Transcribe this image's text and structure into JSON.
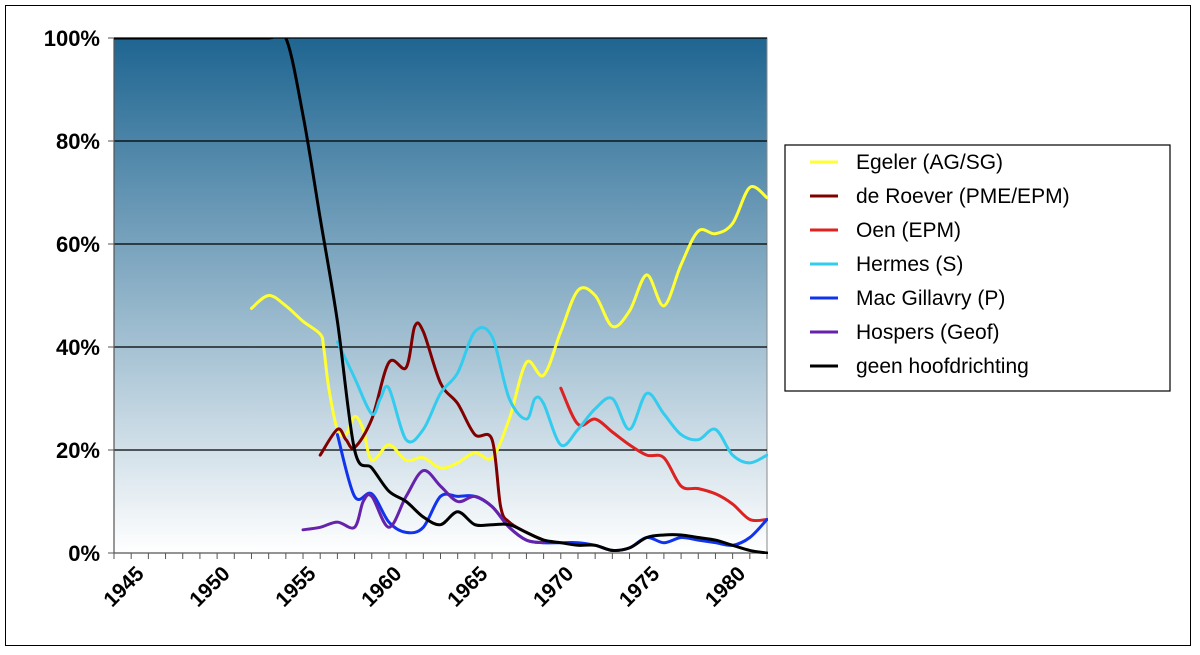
{
  "chart_data": {
    "type": "line",
    "title": "",
    "xlabel": "",
    "ylabel": "",
    "xlim": [
      1944,
      1982
    ],
    "ylim": [
      0,
      100
    ],
    "y_ticks": [
      "0%",
      "20%",
      "40%",
      "60%",
      "80%",
      "100%"
    ],
    "y_tick_values": [
      0,
      20,
      40,
      60,
      80,
      100
    ],
    "x_ticks": [
      "1945",
      "1950",
      "1955",
      "1960",
      "1965",
      "1970",
      "1975",
      "1980"
    ],
    "x_tick_values": [
      1945,
      1950,
      1955,
      1960,
      1965,
      1970,
      1975,
      1980
    ],
    "grid": "horizontal",
    "legend_position": "right",
    "background": [
      "#1e6591",
      "#ffffff"
    ],
    "series": [
      {
        "name": "Egeler (AG/SG)",
        "color": "#ffff33",
        "x": [
          1952,
          1953,
          1954,
          1955,
          1956,
          1956.2,
          1956.5,
          1957,
          1957.5,
          1958,
          1958.5,
          1959,
          1960,
          1961,
          1962,
          1963,
          1964,
          1965,
          1966,
          1967,
          1968,
          1969,
          1970,
          1971,
          1972,
          1973,
          1974,
          1975,
          1976,
          1977,
          1978,
          1979,
          1980,
          1981,
          1982
        ],
        "y": [
          47.5,
          50,
          48,
          45,
          42.5,
          40,
          32,
          24,
          23,
          26.5,
          24,
          18,
          21,
          18,
          18.5,
          16.5,
          17.5,
          19.5,
          18.5,
          26,
          37,
          34.5,
          43,
          51,
          50,
          44,
          47,
          54,
          48,
          56,
          62.5,
          62,
          64,
          71,
          69
        ]
      },
      {
        "name": "de Roever (PME/EPM)",
        "color": "#800000",
        "x": [
          1956,
          1957,
          1957.5,
          1958,
          1959,
          1960,
          1961,
          1961.5,
          1962,
          1963,
          1964,
          1965,
          1966,
          1966.5,
          1967,
          1968,
          1969
        ],
        "y": [
          19,
          24,
          22,
          20.5,
          26,
          37,
          36,
          44,
          43,
          33,
          29,
          23,
          22,
          9,
          6,
          4,
          2.5
        ]
      },
      {
        "name": "Oen (EPM)",
        "color": "#dd2222",
        "x": [
          1970,
          1971,
          1972,
          1973,
          1974,
          1975,
          1976,
          1977,
          1978,
          1979,
          1980,
          1981,
          1982
        ],
        "y": [
          32,
          25,
          26,
          23.5,
          21,
          19,
          18.5,
          13,
          12.5,
          11.5,
          9.5,
          6.5,
          6.5
        ]
      },
      {
        "name": "Hermes (S)",
        "color": "#33ccee",
        "x": [
          1957,
          1958,
          1959,
          1959.5,
          1960,
          1961,
          1962,
          1963,
          1964,
          1965,
          1966,
          1967,
          1968,
          1968.5,
          1969,
          1970,
          1971,
          1972,
          1973,
          1974,
          1975,
          1976,
          1977,
          1978,
          1979,
          1980,
          1981,
          1982
        ],
        "y": [
          41,
          34,
          27,
          30,
          32,
          22,
          24,
          31,
          35,
          43,
          42,
          30,
          26,
          30,
          29,
          21,
          24,
          28,
          30,
          24,
          31,
          27,
          23,
          22,
          24,
          19,
          17.5,
          19
        ]
      },
      {
        "name": "Mac Gillavry (P)",
        "color": "#1133ee",
        "x": [
          1957,
          1958,
          1959,
          1960,
          1961,
          1962,
          1963,
          1964,
          1965,
          1966,
          1967,
          1968,
          1969,
          1970,
          1971,
          1972,
          1973,
          1974,
          1975,
          1976,
          1977,
          1978,
          1979,
          1980,
          1981,
          1982
        ],
        "y": [
          23,
          11,
          11.5,
          6,
          4,
          5,
          11,
          11,
          11,
          9,
          5,
          2.5,
          2,
          2,
          2,
          1.5,
          0.5,
          1,
          3,
          2,
          3,
          2.5,
          2,
          1.5,
          3,
          6.5
        ]
      },
      {
        "name": "Hospers (Geof)",
        "color": "#6622aa",
        "x": [
          1955,
          1956,
          1957,
          1958,
          1958.5,
          1959,
          1960,
          1961,
          1962,
          1963,
          1964,
          1965,
          1966,
          1967,
          1968,
          1969
        ],
        "y": [
          4.5,
          5,
          6,
          5,
          10,
          11,
          5,
          11,
          16,
          13,
          10,
          11,
          9,
          5,
          2.5,
          2
        ]
      },
      {
        "name": "geen hoofdrichting",
        "color": "#000000",
        "x": [
          1944,
          1945,
          1950,
          1953,
          1954,
          1955,
          1956,
          1957,
          1958,
          1959,
          1960,
          1961,
          1962,
          1963,
          1964,
          1965,
          1966,
          1967,
          1968,
          1969,
          1970,
          1971,
          1972,
          1973,
          1974,
          1975,
          1976,
          1977,
          1978,
          1979,
          1980,
          1981,
          1982
        ],
        "y": [
          100,
          100,
          100,
          100,
          100,
          85,
          65,
          45,
          20,
          16.5,
          12,
          10,
          7,
          5.5,
          8,
          5.5,
          5.5,
          5.5,
          4,
          2.5,
          2,
          1.5,
          1.5,
          0.5,
          1,
          3,
          3.5,
          3.5,
          3,
          2.5,
          1.5,
          0.5,
          0
        ]
      }
    ]
  }
}
